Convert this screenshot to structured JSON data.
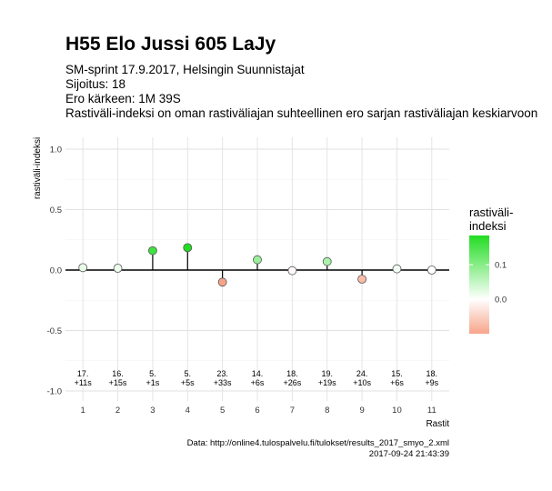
{
  "title": "H55 Elo Jussi 605 LaJy",
  "subtitle_lines": [
    "SM-sprint 17.9.2017, Helsingin Suunnistajat",
    "Sijoitus: 18",
    "Ero kärkeen: 1M 39S",
    "Rastiväli-indeksi on oman rastiväliajan suhteellinen ero sarjan rastiväliajan keskiarvoon"
  ],
  "caption_lines": [
    "Data: http://online4.tulospalvelu.fi/tulokset/results_2017_smyo_2.xml",
    "2017-09-24 21:43:39"
  ],
  "chart_data": {
    "type": "lollipop",
    "xlabel": "Rastit",
    "ylabel": "rastiväli-indeksi",
    "ylim": [
      -1.0,
      1.0
    ],
    "yticks": [
      -1.0,
      -0.5,
      0.0,
      0.5,
      1.0
    ],
    "ytick_labels": [
      "-1.0",
      "-0.5",
      "0.0",
      "0.5",
      "1.0"
    ],
    "x": [
      1,
      2,
      3,
      4,
      5,
      6,
      7,
      8,
      9,
      10,
      11
    ],
    "values": [
      0.02,
      0.015,
      0.16,
      0.185,
      -0.1,
      0.085,
      -0.005,
      0.07,
      -0.075,
      0.01,
      0.0
    ],
    "point_labels": [
      [
        "17.",
        "+11s"
      ],
      [
        "16.",
        "+15s"
      ],
      [
        "5.",
        "+1s"
      ],
      [
        "5.",
        "+5s"
      ],
      [
        "23.",
        "+33s"
      ],
      [
        "14.",
        "+6s"
      ],
      [
        "18.",
        "+26s"
      ],
      [
        "19.",
        "+19s"
      ],
      [
        "24.",
        "+10s"
      ],
      [
        "15.",
        "+6s"
      ],
      [
        "18.",
        "+9s"
      ]
    ],
    "color_low": "#f8a48a",
    "color_mid": "#ffffff",
    "color_high": "#22dd22",
    "legend": {
      "title_lines": [
        "rastiväli-",
        "indeksi"
      ],
      "ticks": [
        0.0,
        0.1
      ],
      "tick_labels": [
        "0.0",
        "0.1"
      ],
      "range": [
        -0.1,
        0.185
      ],
      "position": "right"
    }
  }
}
